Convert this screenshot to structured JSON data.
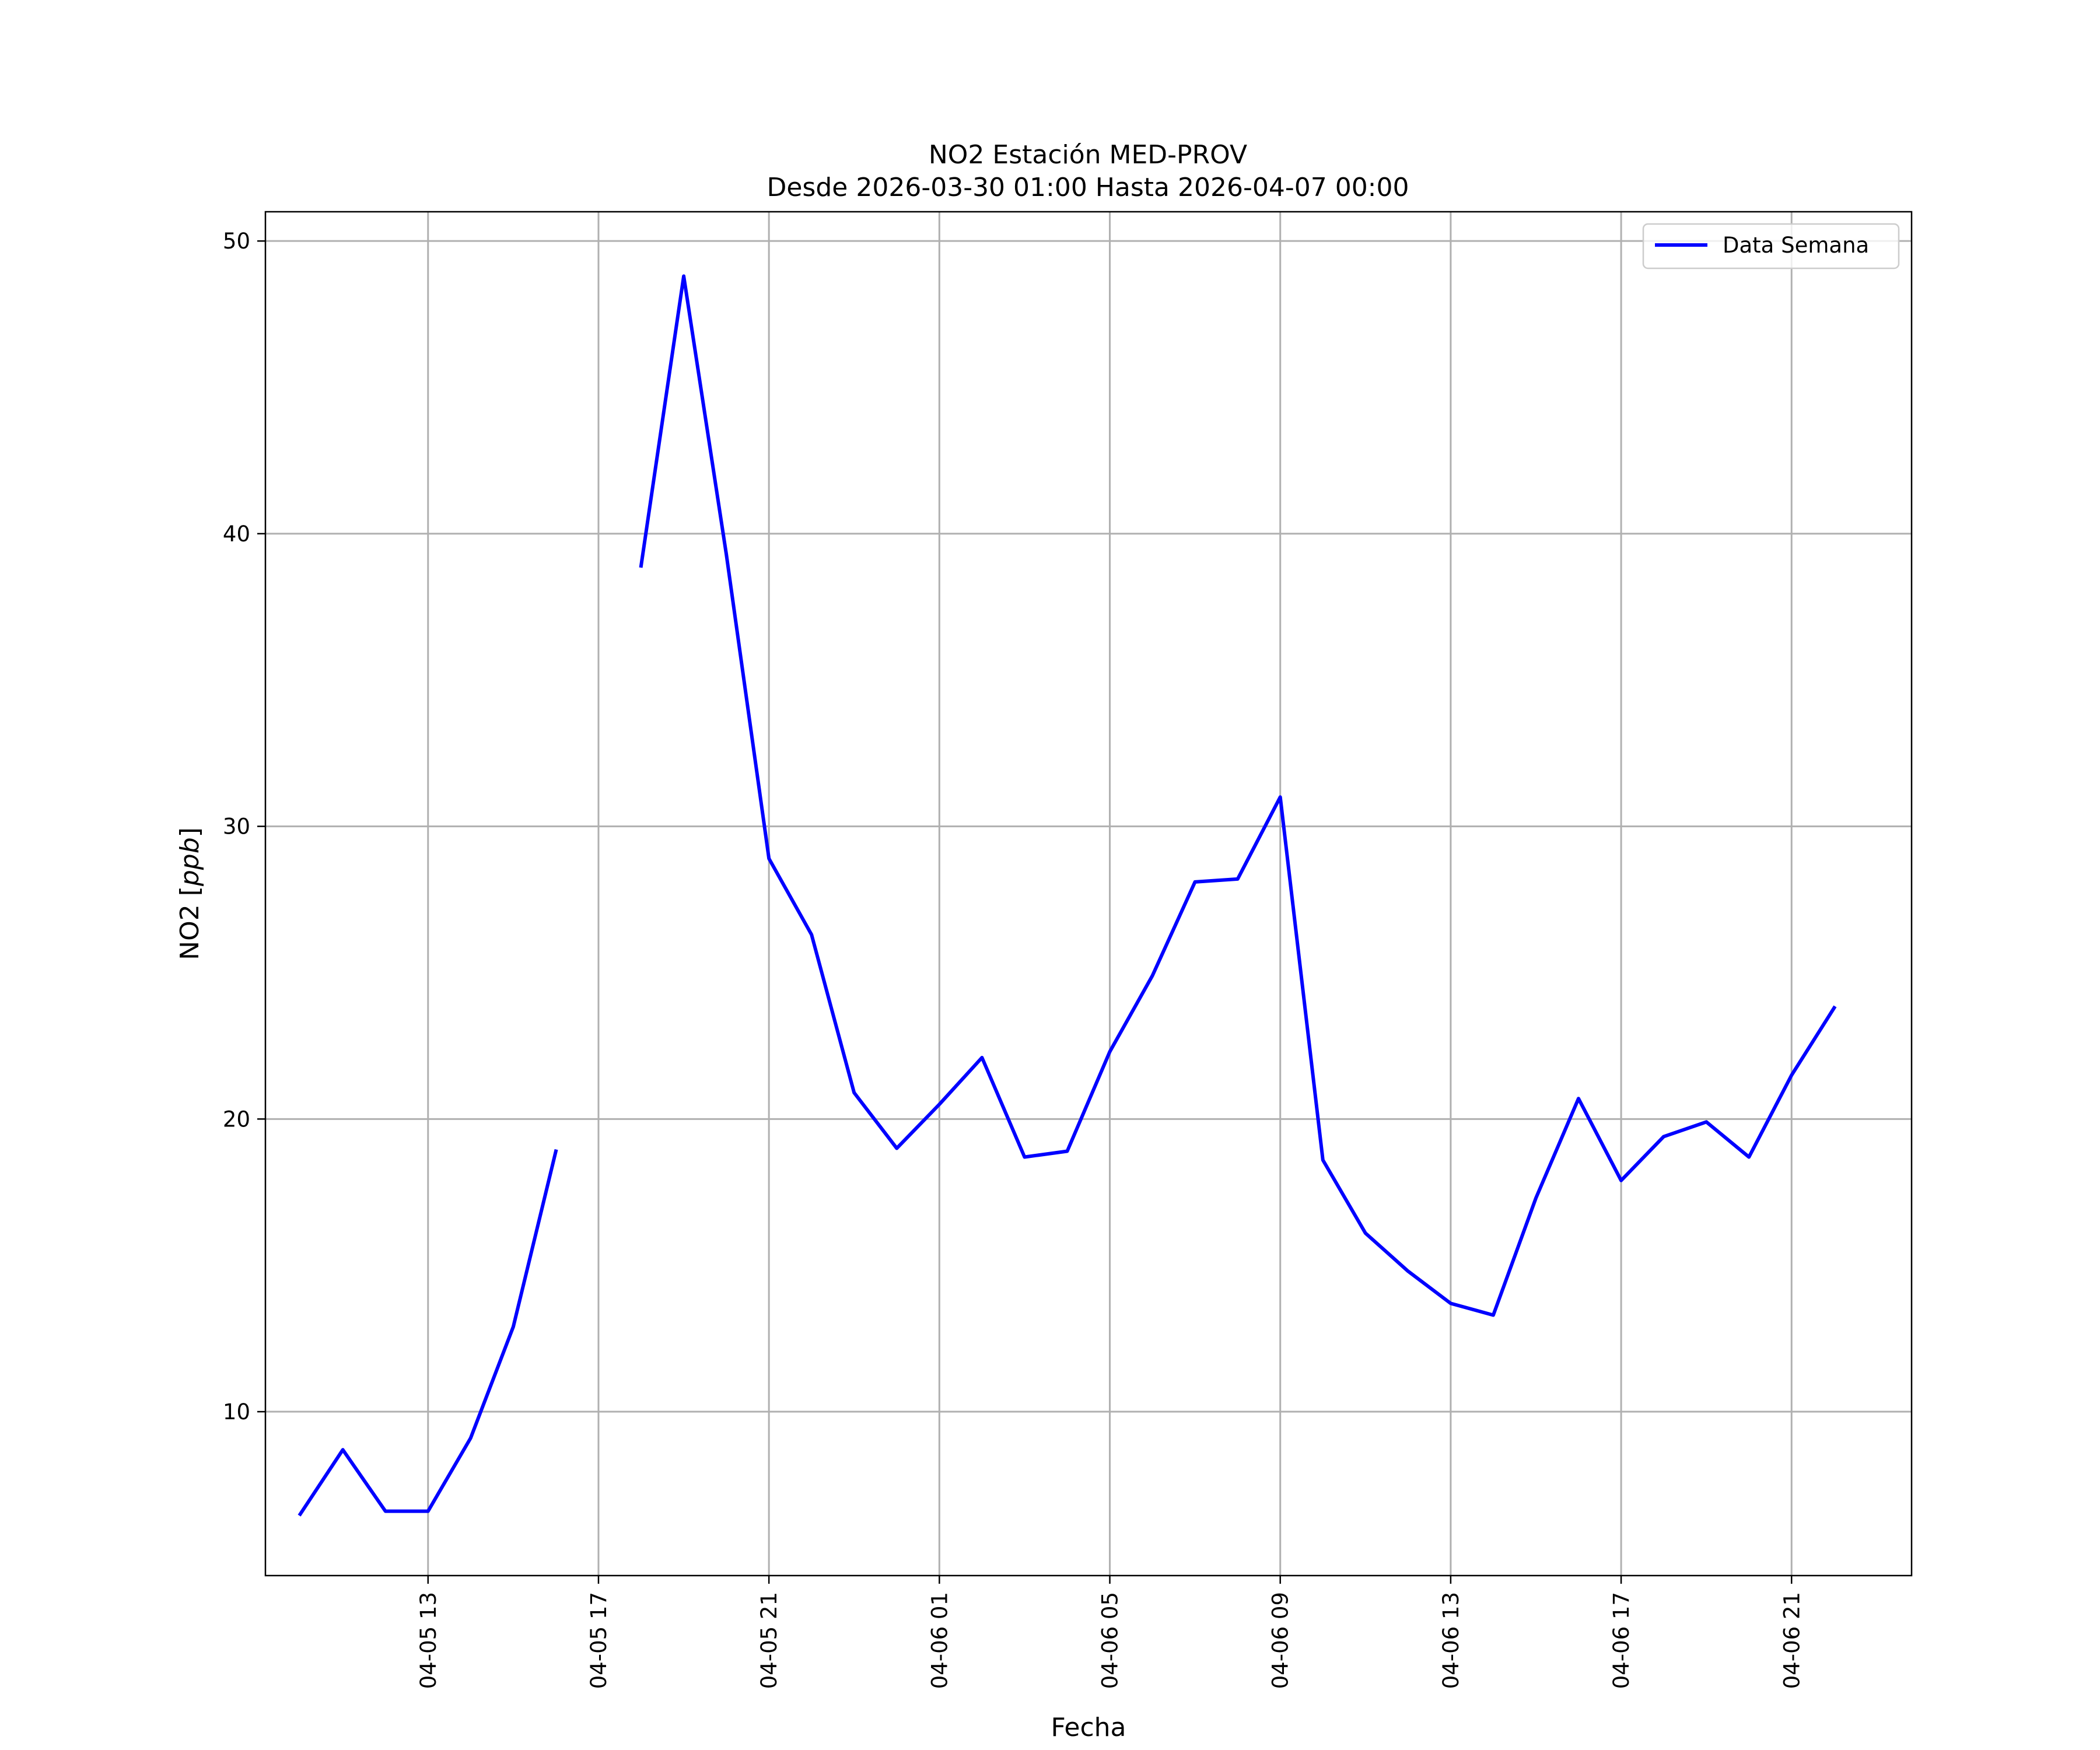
{
  "chart_data": {
    "type": "line",
    "title": "NO2 Estación MED-PROV",
    "subtitle": "Desde 2026-03-30 01:00 Hasta 2026-04-07 00:00",
    "xlabel": "Fecha",
    "ylabel_prefix": "NO2 [",
    "ylabel_unit": "ppb",
    "ylabel_suffix": "]",
    "xlim": [
      "2026-04-05 09:11",
      "2026-04-06 23:49"
    ],
    "ylim": [
      4.4,
      51
    ],
    "grid": true,
    "legend_position": "top-right",
    "x_ticks": [
      {
        "t": "2026-04-05 13:00",
        "label": "04-05 13"
      },
      {
        "t": "2026-04-05 17:00",
        "label": "04-05 17"
      },
      {
        "t": "2026-04-05 21:00",
        "label": "04-05 21"
      },
      {
        "t": "2026-04-06 01:00",
        "label": "04-06 01"
      },
      {
        "t": "2026-04-06 05:00",
        "label": "04-06 05"
      },
      {
        "t": "2026-04-06 09:00",
        "label": "04-06 09"
      },
      {
        "t": "2026-04-06 13:00",
        "label": "04-06 13"
      },
      {
        "t": "2026-04-06 17:00",
        "label": "04-06 17"
      },
      {
        "t": "2026-04-06 21:00",
        "label": "04-06 21"
      }
    ],
    "y_ticks": [
      10,
      20,
      30,
      40,
      50
    ],
    "series": [
      {
        "name": "Data Semana",
        "color": "#0000ff",
        "points": [
          {
            "t": "2026-04-05 10:00",
            "y": 6.5
          },
          {
            "t": "2026-04-05 11:00",
            "y": 8.7
          },
          {
            "t": "2026-04-05 12:00",
            "y": 6.6
          },
          {
            "t": "2026-04-05 13:00",
            "y": 6.6
          },
          {
            "t": "2026-04-05 14:00",
            "y": 9.1
          },
          {
            "t": "2026-04-05 15:00",
            "y": 12.9
          },
          {
            "t": "2026-04-05 16:00",
            "y": 18.9
          },
          {
            "t": "2026-04-05 17:00",
            "y": null
          },
          {
            "t": "2026-04-05 18:00",
            "y": 38.9
          },
          {
            "t": "2026-04-05 19:00",
            "y": 48.8
          },
          {
            "t": "2026-04-05 20:00",
            "y": 39.3
          },
          {
            "t": "2026-04-05 21:00",
            "y": 28.9
          },
          {
            "t": "2026-04-05 22:00",
            "y": 26.3
          },
          {
            "t": "2026-04-05 23:00",
            "y": 20.9
          },
          {
            "t": "2026-04-06 00:00",
            "y": 19.0
          },
          {
            "t": "2026-04-06 01:00",
            "y": 20.5
          },
          {
            "t": "2026-04-06 02:00",
            "y": 22.1
          },
          {
            "t": "2026-04-06 03:00",
            "y": 18.7
          },
          {
            "t": "2026-04-06 04:00",
            "y": 18.9
          },
          {
            "t": "2026-04-06 05:00",
            "y": 22.3
          },
          {
            "t": "2026-04-06 06:00",
            "y": 24.9
          },
          {
            "t": "2026-04-06 07:00",
            "y": 28.1
          },
          {
            "t": "2026-04-06 08:00",
            "y": 28.2
          },
          {
            "t": "2026-04-06 09:00",
            "y": 31.0
          },
          {
            "t": "2026-04-06 10:00",
            "y": 18.6
          },
          {
            "t": "2026-04-06 11:00",
            "y": 16.1
          },
          {
            "t": "2026-04-06 12:00",
            "y": 14.8
          },
          {
            "t": "2026-04-06 13:00",
            "y": 13.7
          },
          {
            "t": "2026-04-06 14:00",
            "y": 13.3
          },
          {
            "t": "2026-04-06 15:00",
            "y": 17.3
          },
          {
            "t": "2026-04-06 16:00",
            "y": 20.7
          },
          {
            "t": "2026-04-06 17:00",
            "y": 17.9
          },
          {
            "t": "2026-04-06 18:00",
            "y": 19.4
          },
          {
            "t": "2026-04-06 19:00",
            "y": 19.9
          },
          {
            "t": "2026-04-06 20:00",
            "y": 18.7
          },
          {
            "t": "2026-04-06 21:00",
            "y": 21.5
          },
          {
            "t": "2026-04-06 22:00",
            "y": 23.8
          }
        ]
      }
    ]
  }
}
